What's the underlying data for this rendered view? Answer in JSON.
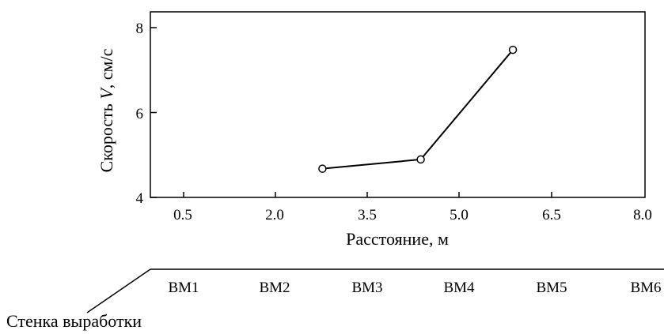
{
  "chart_data": {
    "type": "line",
    "x_label": "Расстояние, м",
    "y_label_prefix": "Скорость ",
    "y_label_var": "V",
    "y_label_suffix": ", см/с",
    "x_ticks": [
      "0.5",
      "2.0",
      "3.5",
      "5.0",
      "6.5",
      "8.0"
    ],
    "y_ticks": [
      "4",
      "6",
      "8"
    ],
    "x_range": [
      -0.05,
      8.0
    ],
    "y_range": [
      4,
      8.4
    ],
    "points": [
      {
        "x": 2.75,
        "y": 4.68
      },
      {
        "x": 4.35,
        "y": 4.9
      },
      {
        "x": 5.85,
        "y": 7.5
      }
    ]
  },
  "stations": [
    "BM1",
    "BM2",
    "BM3",
    "BM4",
    "BM5",
    "BM6"
  ],
  "wall_label": "Стенка выработки"
}
